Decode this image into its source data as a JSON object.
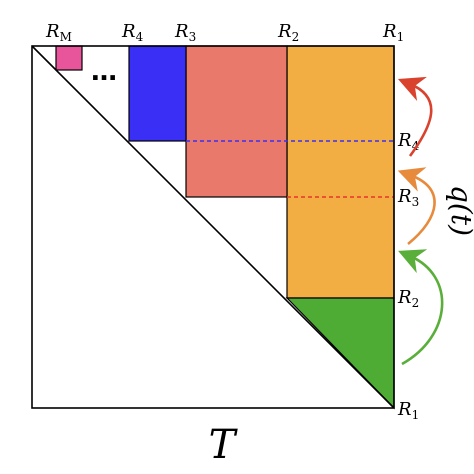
{
  "labels": {
    "top": {
      "rm": {
        "base": "R",
        "sub": "M"
      },
      "r4": {
        "base": "R",
        "sub": "4"
      },
      "r3": {
        "base": "R",
        "sub": "3"
      },
      "r2": {
        "base": "R",
        "sub": "2"
      },
      "r1": {
        "base": "R",
        "sub": "1"
      }
    },
    "right": {
      "r4": {
        "base": "R",
        "sub": "4"
      },
      "r3": {
        "base": "R",
        "sub": "3"
      },
      "r2": {
        "base": "R",
        "sub": "2"
      },
      "r1": {
        "base": "R",
        "sub": "1"
      }
    },
    "ellipsis": "…",
    "bottom_axis": "T",
    "side_text": "q(t)"
  },
  "colors": {
    "outline": "#000000",
    "pink_block": "#e8559b",
    "blue_block": "#3a2ff5",
    "salmon_block": "#e8796b",
    "orange_block": "#f2ae42",
    "green_triangle": "#4eab34",
    "blue_dashed": "#3a2ff5",
    "red_dashed": "#e8352a",
    "arrow_red": "#d9432e",
    "arrow_orange": "#e88a3c",
    "arrow_green": "#5aae3a"
  }
}
